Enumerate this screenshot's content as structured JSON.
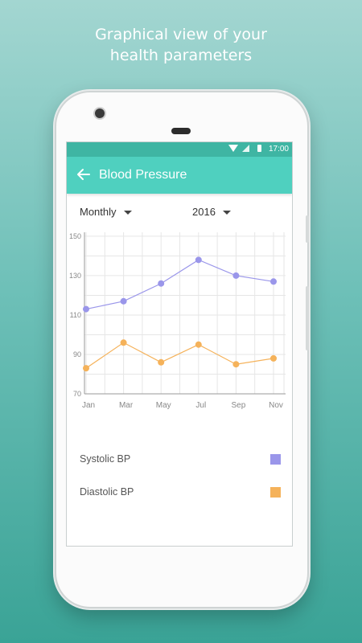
{
  "headline": {
    "line1": "Graphical view of your",
    "line2": "health parameters"
  },
  "status_bar": {
    "time": "17:00"
  },
  "app_bar": {
    "title": "Blood Pressure",
    "back_icon": "arrow-left-icon"
  },
  "filters": {
    "period": "Monthly",
    "year": "2016"
  },
  "colors": {
    "status_bar": "#3fb5a3",
    "app_bar": "#4fd0bf",
    "systolic": "#9a96ea",
    "diastolic": "#f5b25a"
  },
  "chart_data": {
    "type": "line",
    "categories": [
      "Jan",
      "Mar",
      "May",
      "Jul",
      "Sep",
      "Nov"
    ],
    "series": [
      {
        "name": "Systolic BP",
        "values": [
          113,
          117,
          126,
          138,
          130,
          127
        ]
      },
      {
        "name": "Diastolic BP",
        "values": [
          83,
          96,
          86,
          95,
          85,
          88
        ]
      }
    ],
    "y_ticks": [
      70,
      90,
      110,
      130,
      150
    ],
    "ylim": [
      70,
      152
    ],
    "grid": true
  },
  "legend": {
    "systolic_label": "Systolic BP",
    "diastolic_label": "Diastolic BP"
  }
}
